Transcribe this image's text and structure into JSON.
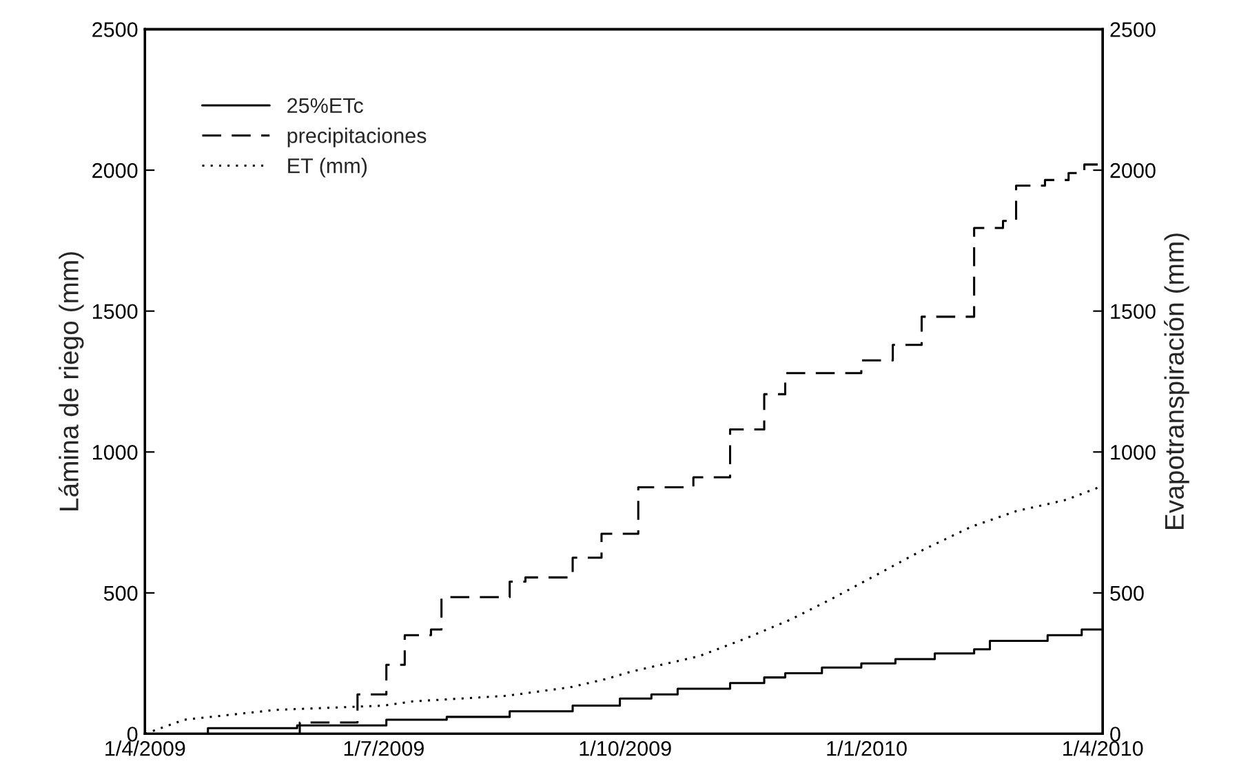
{
  "chart_data": {
    "type": "line",
    "ylabel": "Lámina de riego (mm)",
    "y2label": "Evapotranspiración (mm)",
    "xlim": [
      "2009-04-01",
      "2010-04-01"
    ],
    "xticks": [
      {
        "value": "2009-04-01",
        "label": "1/4/2009"
      },
      {
        "value": "2009-07-01",
        "label": "1/7/2009"
      },
      {
        "value": "2009-10-01",
        "label": "1/10/2009"
      },
      {
        "value": "2010-01-01",
        "label": "1/1/2010"
      },
      {
        "value": "2010-04-01",
        "label": "1/4/2010"
      }
    ],
    "ylim": [
      0,
      2500
    ],
    "yticks": [
      0,
      500,
      1000,
      1500,
      2000,
      2500
    ],
    "y2lim": [
      0,
      2500
    ],
    "y2ticks": [
      0,
      500,
      1000,
      1500,
      2000,
      2500
    ],
    "legend": "top left",
    "grid": false,
    "marker": "none",
    "series": [
      {
        "name": "25%ETc",
        "type": "step",
        "line_style": "solid",
        "color": "#000000",
        "x": [
          "2009-04-01",
          "2009-04-25",
          "2009-05-29",
          "2009-07-02",
          "2009-07-25",
          "2009-08-18",
          "2009-09-11",
          "2009-09-29",
          "2009-10-11",
          "2009-10-21",
          "2009-11-10",
          "2009-11-23",
          "2009-12-01",
          "2009-12-15",
          "2009-12-30",
          "2010-01-12",
          "2010-01-27",
          "2010-02-11",
          "2010-02-17",
          "2010-03-11",
          "2010-03-24",
          "2010-04-01"
        ],
        "values": [
          0,
          20,
          30,
          50,
          60,
          80,
          100,
          125,
          140,
          160,
          180,
          200,
          215,
          235,
          250,
          265,
          285,
          300,
          330,
          350,
          370,
          370
        ]
      },
      {
        "name": "precipitaciones",
        "type": "step",
        "line_style": "dashed",
        "color": "#000000",
        "x": [
          "2009-04-01",
          "2009-05-30",
          "2009-06-21",
          "2009-07-02",
          "2009-07-09",
          "2009-07-19",
          "2009-07-23",
          "2009-08-18",
          "2009-08-24",
          "2009-09-11",
          "2009-09-22",
          "2009-10-06",
          "2009-10-27",
          "2009-11-10",
          "2009-11-23",
          "2009-12-01",
          "2009-12-30",
          "2010-01-11",
          "2010-01-22",
          "2010-02-11",
          "2010-02-22",
          "2010-02-27",
          "2010-03-10",
          "2010-03-19",
          "2010-03-25",
          "2010-04-01"
        ],
        "values": [
          0,
          40,
          140,
          245,
          350,
          370,
          485,
          540,
          555,
          625,
          710,
          875,
          910,
          1080,
          1205,
          1280,
          1325,
          1380,
          1480,
          1795,
          1820,
          1945,
          1965,
          1990,
          2020,
          2020
        ]
      },
      {
        "name": "ET (mm)",
        "line_style": "dotted",
        "color": "#000000",
        "x": [
          "2009-04-01",
          "2009-04-16",
          "2009-05-21",
          "2009-07-01",
          "2009-07-12",
          "2009-08-17",
          "2009-09-10",
          "2009-09-24",
          "2009-10-03",
          "2009-10-29",
          "2009-11-15",
          "2009-12-03",
          "2009-12-20",
          "2010-01-06",
          "2010-01-23",
          "2010-02-10",
          "2010-02-27",
          "2010-03-18",
          "2010-04-01"
        ],
        "values": [
          0,
          50,
          85,
          100,
          115,
          135,
          165,
          195,
          220,
          275,
          335,
          405,
          485,
          570,
          655,
          735,
          790,
          830,
          880
        ]
      }
    ]
  }
}
